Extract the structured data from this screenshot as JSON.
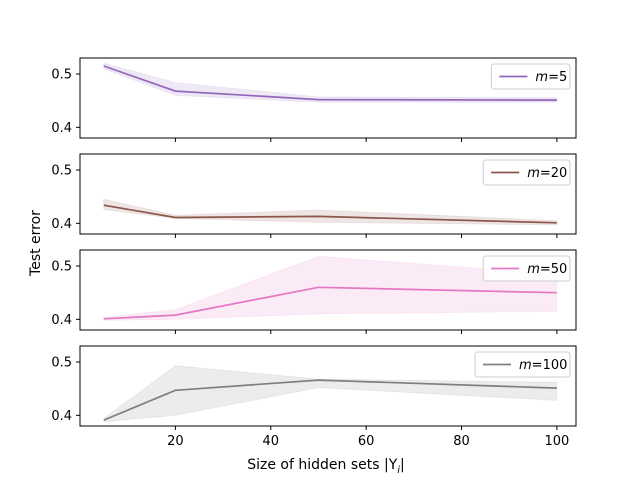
{
  "chart_data": {
    "type": "line",
    "xlabel": "Size of hidden sets |Y",
    "xlabel_sub": "i",
    "xlabel_suffix": "|",
    "ylabel": "Test error",
    "x": [
      5,
      20,
      50,
      100
    ],
    "xlim": [
      0,
      104
    ],
    "xticks": [
      20,
      40,
      60,
      80,
      100
    ],
    "yticks": [
      0.4,
      0.5
    ],
    "panels": [
      {
        "name": "m5",
        "legend": "m=5",
        "legend_var": "m",
        "legend_val": "=5",
        "color": "#9467bd",
        "ylim": [
          0.38,
          0.53
        ],
        "values": [
          0.515,
          0.468,
          0.452,
          0.451
        ],
        "lower": [
          0.51,
          0.46,
          0.447,
          0.447
        ],
        "upper": [
          0.52,
          0.484,
          0.457,
          0.456
        ]
      },
      {
        "name": "m20",
        "legend": "m=20",
        "legend_var": "m",
        "legend_val": "=20",
        "color": "#8c564b",
        "ylim": [
          0.38,
          0.53
        ],
        "values": [
          0.434,
          0.411,
          0.413,
          0.401
        ],
        "lower": [
          0.426,
          0.409,
          0.402,
          0.397
        ],
        "upper": [
          0.445,
          0.415,
          0.425,
          0.405
        ]
      },
      {
        "name": "m50",
        "legend": "m=50",
        "legend_var": "m",
        "legend_val": "=50",
        "color": "#e377c2",
        "ylim": [
          0.38,
          0.53
        ],
        "values": [
          0.401,
          0.408,
          0.46,
          0.45
        ],
        "lower": [
          0.398,
          0.4,
          0.41,
          0.415
        ],
        "upper": [
          0.404,
          0.418,
          0.518,
          0.485
        ]
      },
      {
        "name": "m100",
        "legend": "m=100",
        "legend_var": "m",
        "legend_val": "=100",
        "color": "#7f7f7f",
        "ylim": [
          0.38,
          0.53
        ],
        "values": [
          0.391,
          0.447,
          0.466,
          0.451
        ],
        "lower": [
          0.388,
          0.4,
          0.452,
          0.428
        ],
        "upper": [
          0.394,
          0.493,
          0.468,
          0.462
        ]
      }
    ]
  }
}
